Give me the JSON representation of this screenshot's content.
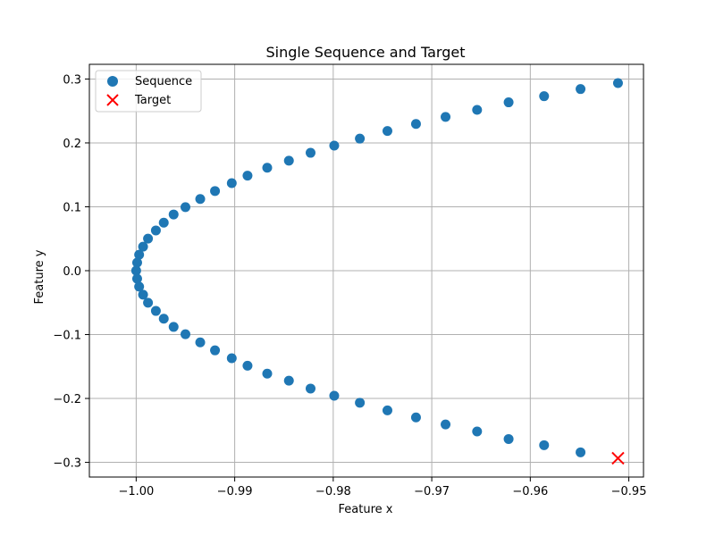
{
  "chart_data": {
    "type": "scatter",
    "title": "Single Sequence and Target",
    "xlabel": "Feature x",
    "ylabel": "Feature y",
    "xlim": [
      -1.00475,
      -0.94851
    ],
    "ylim": [
      -0.323,
      0.323
    ],
    "xticks": [
      -1.0,
      -0.99,
      -0.98,
      -0.97,
      -0.96,
      -0.95
    ],
    "xtick_labels": [
      "−1.00",
      "−0.99",
      "−0.98",
      "−0.97",
      "−0.96",
      "−0.95"
    ],
    "yticks": [
      -0.3,
      -0.2,
      -0.1,
      0.0,
      0.1,
      0.2,
      0.3
    ],
    "ytick_labels": [
      "−0.3",
      "−0.2",
      "−0.1",
      "0.0",
      "0.1",
      "0.2",
      "0.3"
    ],
    "grid": true,
    "legend_position": "top-left",
    "series": [
      {
        "name": "Sequence",
        "marker": "circle",
        "color": "#1f77b4",
        "points": [
          [
            -0.9511,
            0.2936
          ],
          [
            -0.9549,
            0.2843
          ],
          [
            -0.9586,
            0.2731
          ],
          [
            -0.9622,
            0.2635
          ],
          [
            -0.9654,
            0.2517
          ],
          [
            -0.9686,
            0.2407
          ],
          [
            -0.9716,
            0.2297
          ],
          [
            -0.9745,
            0.2187
          ],
          [
            -0.9773,
            0.2067
          ],
          [
            -0.9799,
            0.1958
          ],
          [
            -0.9823,
            0.1845
          ],
          [
            -0.9845,
            0.1722
          ],
          [
            -0.9867,
            0.1612
          ],
          [
            -0.9887,
            0.1487
          ],
          [
            -0.9903,
            0.137
          ],
          [
            -0.992,
            0.1247
          ],
          [
            -0.9935,
            0.1122
          ],
          [
            -0.995,
            0.0995
          ],
          [
            -0.9962,
            0.088
          ],
          [
            -0.9972,
            0.0751
          ],
          [
            -0.998,
            0.063
          ],
          [
            -0.9988,
            0.0502
          ],
          [
            -0.9993,
            0.0376
          ],
          [
            -0.9997,
            0.025
          ],
          [
            -0.9999,
            0.0126
          ],
          [
            -1.0,
            0.0
          ],
          [
            -0.9999,
            -0.0126
          ],
          [
            -0.9997,
            -0.025
          ],
          [
            -0.9993,
            -0.0376
          ],
          [
            -0.9988,
            -0.0502
          ],
          [
            -0.998,
            -0.063
          ],
          [
            -0.9972,
            -0.0751
          ],
          [
            -0.9962,
            -0.088
          ],
          [
            -0.995,
            -0.0995
          ],
          [
            -0.9935,
            -0.1122
          ],
          [
            -0.992,
            -0.1247
          ],
          [
            -0.9903,
            -0.137
          ],
          [
            -0.9887,
            -0.1487
          ],
          [
            -0.9867,
            -0.1612
          ],
          [
            -0.9845,
            -0.1722
          ],
          [
            -0.9823,
            -0.1845
          ],
          [
            -0.9799,
            -0.1958
          ],
          [
            -0.9773,
            -0.2067
          ],
          [
            -0.9745,
            -0.2187
          ],
          [
            -0.9716,
            -0.2297
          ],
          [
            -0.9686,
            -0.2407
          ],
          [
            -0.9654,
            -0.2517
          ],
          [
            -0.9622,
            -0.2635
          ],
          [
            -0.9586,
            -0.2731
          ],
          [
            -0.9549,
            -0.2843
          ]
        ]
      },
      {
        "name": "Target",
        "marker": "x",
        "color": "#ff0000",
        "points": [
          [
            -0.9511,
            -0.2936
          ]
        ]
      }
    ]
  }
}
